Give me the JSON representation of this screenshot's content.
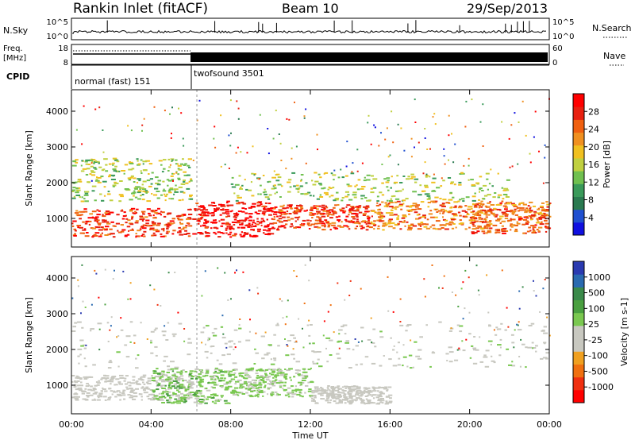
{
  "header": {
    "station": "Rankin Inlet (fitACF)",
    "beam": "Beam 10",
    "date": "29/Sep/2013"
  },
  "panels": {
    "nsky_label": "N.Sky",
    "nsky_ticks": [
      "10^5",
      "10^0"
    ],
    "nsearch_label": "N.Search",
    "freq_label": "Freq.",
    "freq_unit": "[MHz]",
    "freq_ticks": [
      "18",
      "8"
    ],
    "nave_ticks": [
      "60",
      "0"
    ],
    "nave_label": "Nave",
    "cpid_label": "CPID",
    "cpid_modes": [
      "normal (fast) 151",
      "twofsound 3501"
    ]
  },
  "colorbars": {
    "power": {
      "label": "Power [dB]",
      "ticks": [
        "28",
        "24",
        "20",
        "16",
        "12",
        "8",
        "4"
      ],
      "colors": [
        "#1010e0",
        "#2050d0",
        "#2a7a50",
        "#3a9a5a",
        "#70c050",
        "#c0d040",
        "#f0c020",
        "#f09020",
        "#f06010",
        "#e82010",
        "#ff0000"
      ]
    },
    "velocity": {
      "label": "Velocity [m s-1]",
      "ticks": [
        "1000",
        "500",
        "100",
        "25",
        "-25",
        "-100",
        "-500",
        "-1000"
      ],
      "colors": [
        "#2a3ab0",
        "#2a6ab0",
        "#3a8a4a",
        "#4aa040",
        "#7ac850",
        "#c8c8c0",
        "#c8c8c0",
        "#f0a020",
        "#f07010",
        "#f03010",
        "#ff0000"
      ]
    }
  },
  "chart_data": [
    {
      "type": "heatmap",
      "title": "Rankin Inlet (fitACF) Beam 10 29/Sep/2013",
      "ylabel": "Slant Range [km]",
      "xlabel": "Time UT",
      "x_ticks": [
        "00:00",
        "04:00",
        "08:00",
        "12:00",
        "16:00",
        "20:00",
        "00:00"
      ],
      "y_ticks": [
        1000,
        2000,
        3000,
        4000
      ],
      "ylim": [
        200,
        4600
      ],
      "xlim_hours": [
        0,
        24
      ],
      "colorbar": "Power [dB]",
      "dominant_structure": [
        {
          "x_hours": [
            0,
            6
          ],
          "range_km": [
            500,
            1300
          ],
          "value_db": 26
        },
        {
          "x_hours": [
            6,
            10
          ],
          "range_km": [
            500,
            1500
          ],
          "value_db": 30
        },
        {
          "x_hours": [
            10,
            15
          ],
          "range_km": [
            700,
            1400
          ],
          "value_db": 26
        },
        {
          "x_hours": [
            15,
            21
          ],
          "range_km": [
            700,
            1500
          ],
          "value_db": 22
        },
        {
          "x_hours": [
            20,
            24
          ],
          "range_km": [
            600,
            1500
          ],
          "value_db": 24
        },
        {
          "x_hours": [
            0,
            6
          ],
          "range_km": [
            1500,
            2700
          ],
          "value_db": 14
        },
        {
          "x_hours": [
            8,
            22
          ],
          "range_km": [
            1500,
            2300
          ],
          "value_db": 14
        }
      ]
    },
    {
      "type": "heatmap",
      "ylabel": "Slant Range [km]",
      "xlabel": "Time UT",
      "x_ticks": [
        "00:00",
        "04:00",
        "08:00",
        "12:00",
        "16:00",
        "20:00",
        "00:00"
      ],
      "y_ticks": [
        1000,
        2000,
        3000,
        4000
      ],
      "ylim": [
        200,
        4600
      ],
      "xlim_hours": [
        0,
        24
      ],
      "colorbar": "Velocity [m s-1]",
      "dominant_structure": [
        {
          "x_hours": [
            0,
            6
          ],
          "range_km": [
            600,
            1300
          ],
          "value_ms": -150
        },
        {
          "x_hours": [
            4,
            8
          ],
          "range_km": [
            500,
            1500
          ],
          "value_ms": 200
        },
        {
          "x_hours": [
            8,
            12
          ],
          "range_km": [
            700,
            1500
          ],
          "value_ms": 150
        },
        {
          "x_hours": [
            12,
            16
          ],
          "range_km": [
            500,
            1000
          ],
          "value_ms": -150
        },
        {
          "x_hours": [
            0,
            24
          ],
          "range_km": [
            1500,
            2800
          ],
          "value_ms": 0
        }
      ]
    }
  ]
}
